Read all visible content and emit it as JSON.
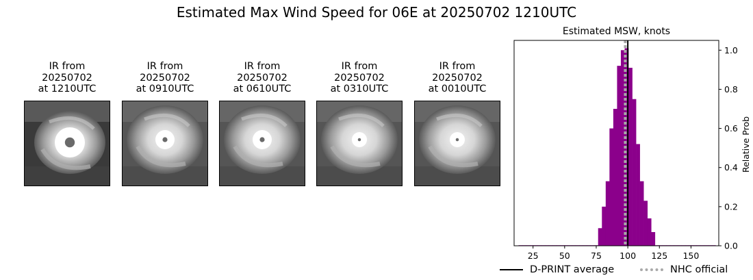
{
  "title": "Estimated Max Wind Speed for 06E at 20250702 1210UTC",
  "panels": [
    {
      "caption": "IR from\n20250702\nat 1210UTC",
      "eye": "large"
    },
    {
      "caption": "IR from\n20250702\nat 0910UTC",
      "eye": "medium"
    },
    {
      "caption": "IR from\n20250702\nat 0610UTC",
      "eye": "medium"
    },
    {
      "caption": "IR from\n20250702\nat 0310UTC",
      "eye": "small"
    },
    {
      "caption": "IR from\n20250702\nat 0010UTC",
      "eye": "small"
    }
  ],
  "chart_data": {
    "type": "bar",
    "title": "Estimated MSW, knots",
    "xlabel": "",
    "ylabel": "Relative Prob",
    "xlim": [
      10,
      172
    ],
    "ylim": [
      0.0,
      1.05
    ],
    "xticks": [
      25,
      50,
      75,
      100,
      125,
      150
    ],
    "yticks": [
      0.0,
      0.2,
      0.4,
      0.6,
      0.8,
      1.0
    ],
    "ytick_labels": [
      "0.0",
      "0.2",
      "0.4",
      "0.6",
      "0.8",
      "1.0"
    ],
    "y_axis_side": "right",
    "bar_color": "#8b008b",
    "bin_width": 3,
    "bins": [
      {
        "x": 15,
        "y": 0.0
      },
      {
        "x": 18,
        "y": 0.0
      },
      {
        "x": 21,
        "y": 0.0
      },
      {
        "x": 24,
        "y": 0.0
      },
      {
        "x": 27,
        "y": 0.0
      },
      {
        "x": 30,
        "y": 0.0
      },
      {
        "x": 33,
        "y": 0.0
      },
      {
        "x": 36,
        "y": 0.0
      },
      {
        "x": 39,
        "y": 0.0
      },
      {
        "x": 42,
        "y": 0.0
      },
      {
        "x": 45,
        "y": 0.0
      },
      {
        "x": 48,
        "y": 0.0
      },
      {
        "x": 51,
        "y": 0.0
      },
      {
        "x": 54,
        "y": 0.0
      },
      {
        "x": 57,
        "y": 0.0
      },
      {
        "x": 60,
        "y": 0.0
      },
      {
        "x": 63,
        "y": 0.0
      },
      {
        "x": 66,
        "y": 0.0
      },
      {
        "x": 69,
        "y": 0.0
      },
      {
        "x": 72,
        "y": 0.0
      },
      {
        "x": 75,
        "y": 0.0
      },
      {
        "x": 78,
        "y": 0.09
      },
      {
        "x": 81,
        "y": 0.2
      },
      {
        "x": 84,
        "y": 0.33
      },
      {
        "x": 87,
        "y": 0.6
      },
      {
        "x": 90,
        "y": 0.7
      },
      {
        "x": 93,
        "y": 0.92
      },
      {
        "x": 96,
        "y": 1.0
      },
      {
        "x": 99,
        "y": 1.01
      },
      {
        "x": 102,
        "y": 0.91
      },
      {
        "x": 105,
        "y": 0.75
      },
      {
        "x": 108,
        "y": 0.52
      },
      {
        "x": 111,
        "y": 0.33
      },
      {
        "x": 114,
        "y": 0.23
      },
      {
        "x": 117,
        "y": 0.14
      },
      {
        "x": 120,
        "y": 0.07
      },
      {
        "x": 123,
        "y": 0.0
      },
      {
        "x": 126,
        "y": 0.0
      },
      {
        "x": 129,
        "y": 0.0
      },
      {
        "x": 132,
        "y": 0.0
      },
      {
        "x": 135,
        "y": 0.0
      },
      {
        "x": 138,
        "y": 0.0
      },
      {
        "x": 141,
        "y": 0.0
      },
      {
        "x": 144,
        "y": 0.0
      },
      {
        "x": 147,
        "y": 0.0
      },
      {
        "x": 150,
        "y": 0.0
      },
      {
        "x": 153,
        "y": 0.0
      },
      {
        "x": 156,
        "y": 0.0
      },
      {
        "x": 159,
        "y": 0.0
      },
      {
        "x": 162,
        "y": 0.0
      },
      {
        "x": 165,
        "y": 0.0
      },
      {
        "x": 168,
        "y": 0.0
      }
    ],
    "lines": [
      {
        "name": "D-PRINT average",
        "x": 100,
        "color": "#000000",
        "style": "solid"
      },
      {
        "name": "NHC official",
        "x": 98,
        "color": "#a9a9a9",
        "style": "dotted"
      }
    ],
    "legend_position": "bottom-right",
    "grid": false
  }
}
